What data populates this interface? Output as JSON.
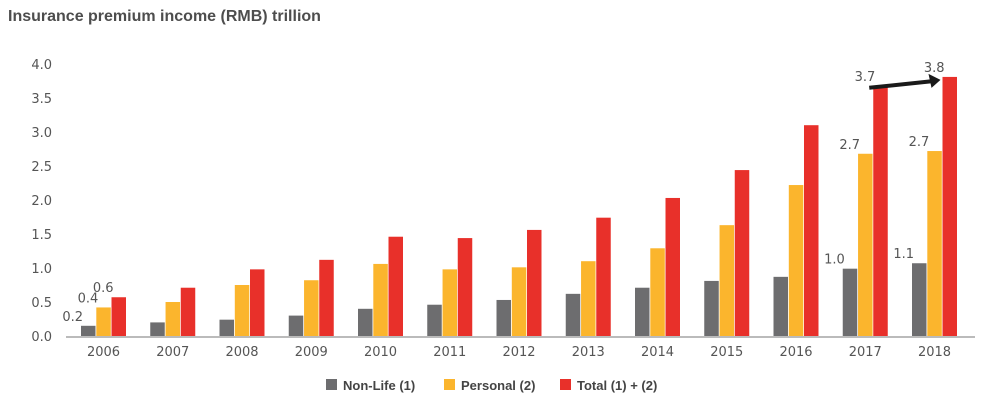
{
  "chart_data": {
    "type": "bar",
    "title": "Insurance premium income (RMB) trillion",
    "xlabel": "",
    "ylabel": "",
    "ylim": [
      0,
      4.0
    ],
    "yticks": [
      "0.0",
      "0.5",
      "1.0",
      "1.5",
      "2.0",
      "2.5",
      "3.0",
      "3.5",
      "4.0"
    ],
    "grid": false,
    "legend_position": "bottom",
    "categories": [
      "2006",
      "2007",
      "2008",
      "2009",
      "2010",
      "2011",
      "2012",
      "2013",
      "2014",
      "2015",
      "2016",
      "2017",
      "2018"
    ],
    "series": [
      {
        "name": "Non-Life (1)",
        "color": "#6d6d6f",
        "values": [
          0.15,
          0.2,
          0.24,
          0.3,
          0.4,
          0.46,
          0.53,
          0.62,
          0.71,
          0.81,
          0.87,
          0.99,
          1.07
        ]
      },
      {
        "name": "Personal (2)",
        "color": "#fbb52d",
        "values": [
          0.42,
          0.5,
          0.75,
          0.82,
          1.06,
          0.98,
          1.01,
          1.1,
          1.29,
          1.63,
          2.22,
          2.68,
          2.72
        ]
      },
      {
        "name": "Total (1) + (2)",
        "color": "#e8302a",
        "values": [
          0.57,
          0.71,
          0.98,
          1.12,
          1.46,
          1.44,
          1.56,
          1.74,
          2.03,
          2.44,
          3.1,
          3.68,
          3.81
        ]
      }
    ],
    "data_labels": [
      {
        "category": "2006",
        "series": 0,
        "text": "0.2"
      },
      {
        "category": "2006",
        "series": 1,
        "text": "0.4"
      },
      {
        "category": "2006",
        "series": 2,
        "text": "0.6"
      },
      {
        "category": "2017",
        "series": 0,
        "text": "1.0"
      },
      {
        "category": "2017",
        "series": 1,
        "text": "2.7"
      },
      {
        "category": "2017",
        "series": 2,
        "text": "3.7"
      },
      {
        "category": "2018",
        "series": 0,
        "text": "1.1"
      },
      {
        "category": "2018",
        "series": 1,
        "text": "2.7"
      },
      {
        "category": "2018",
        "series": 2,
        "text": "3.8"
      }
    ],
    "annotations": [
      {
        "type": "arrow",
        "from_category": "2017",
        "to_category": "2018",
        "color": "#1a1a1a"
      }
    ]
  }
}
